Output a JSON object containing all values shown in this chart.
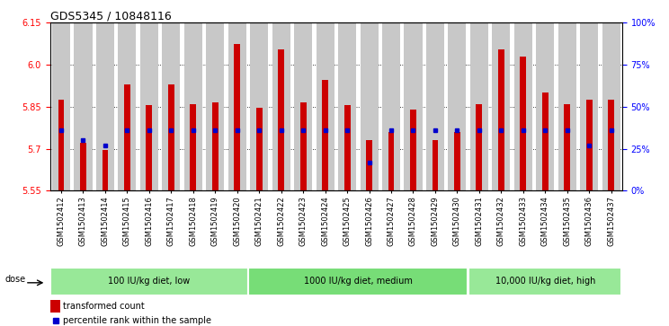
{
  "title": "GDS5345 / 10848116",
  "samples": [
    "GSM1502412",
    "GSM1502413",
    "GSM1502414",
    "GSM1502415",
    "GSM1502416",
    "GSM1502417",
    "GSM1502418",
    "GSM1502419",
    "GSM1502420",
    "GSM1502421",
    "GSM1502422",
    "GSM1502423",
    "GSM1502424",
    "GSM1502425",
    "GSM1502426",
    "GSM1502427",
    "GSM1502428",
    "GSM1502429",
    "GSM1502430",
    "GSM1502431",
    "GSM1502432",
    "GSM1502433",
    "GSM1502434",
    "GSM1502435",
    "GSM1502436",
    "GSM1502437"
  ],
  "transformed_counts": [
    5.875,
    5.72,
    5.695,
    5.93,
    5.855,
    5.93,
    5.86,
    5.865,
    6.075,
    5.845,
    6.055,
    5.865,
    5.945,
    5.855,
    5.73,
    5.76,
    5.84,
    5.73,
    5.76,
    5.86,
    6.055,
    6.03,
    5.9,
    5.86,
    5.875,
    5.875
  ],
  "percentile_ranks": [
    36,
    30,
    27,
    36,
    36,
    36,
    36,
    36,
    36,
    36,
    36,
    36,
    36,
    36,
    17,
    36,
    36,
    36,
    36,
    36,
    36,
    36,
    36,
    36,
    27,
    36
  ],
  "groups": [
    {
      "label": "100 IU/kg diet, low",
      "start": 0,
      "end": 9
    },
    {
      "label": "1000 IU/kg diet, medium",
      "start": 9,
      "end": 19
    },
    {
      "label": "10,000 IU/kg diet, high",
      "start": 19,
      "end": 26
    }
  ],
  "ylim_left": [
    5.55,
    6.15
  ],
  "yticks_left": [
    5.55,
    5.7,
    5.85,
    6.0,
    6.15
  ],
  "yticks_right": [
    0,
    25,
    50,
    75,
    100
  ],
  "bar_color": "#CC0000",
  "percentile_color": "#0000CC",
  "col_bg_color": "#C8C8C8",
  "green_color": "#90EE90",
  "grid_color": "#000000",
  "title_fontsize": 9,
  "tick_fontsize": 7,
  "label_fontsize": 6
}
